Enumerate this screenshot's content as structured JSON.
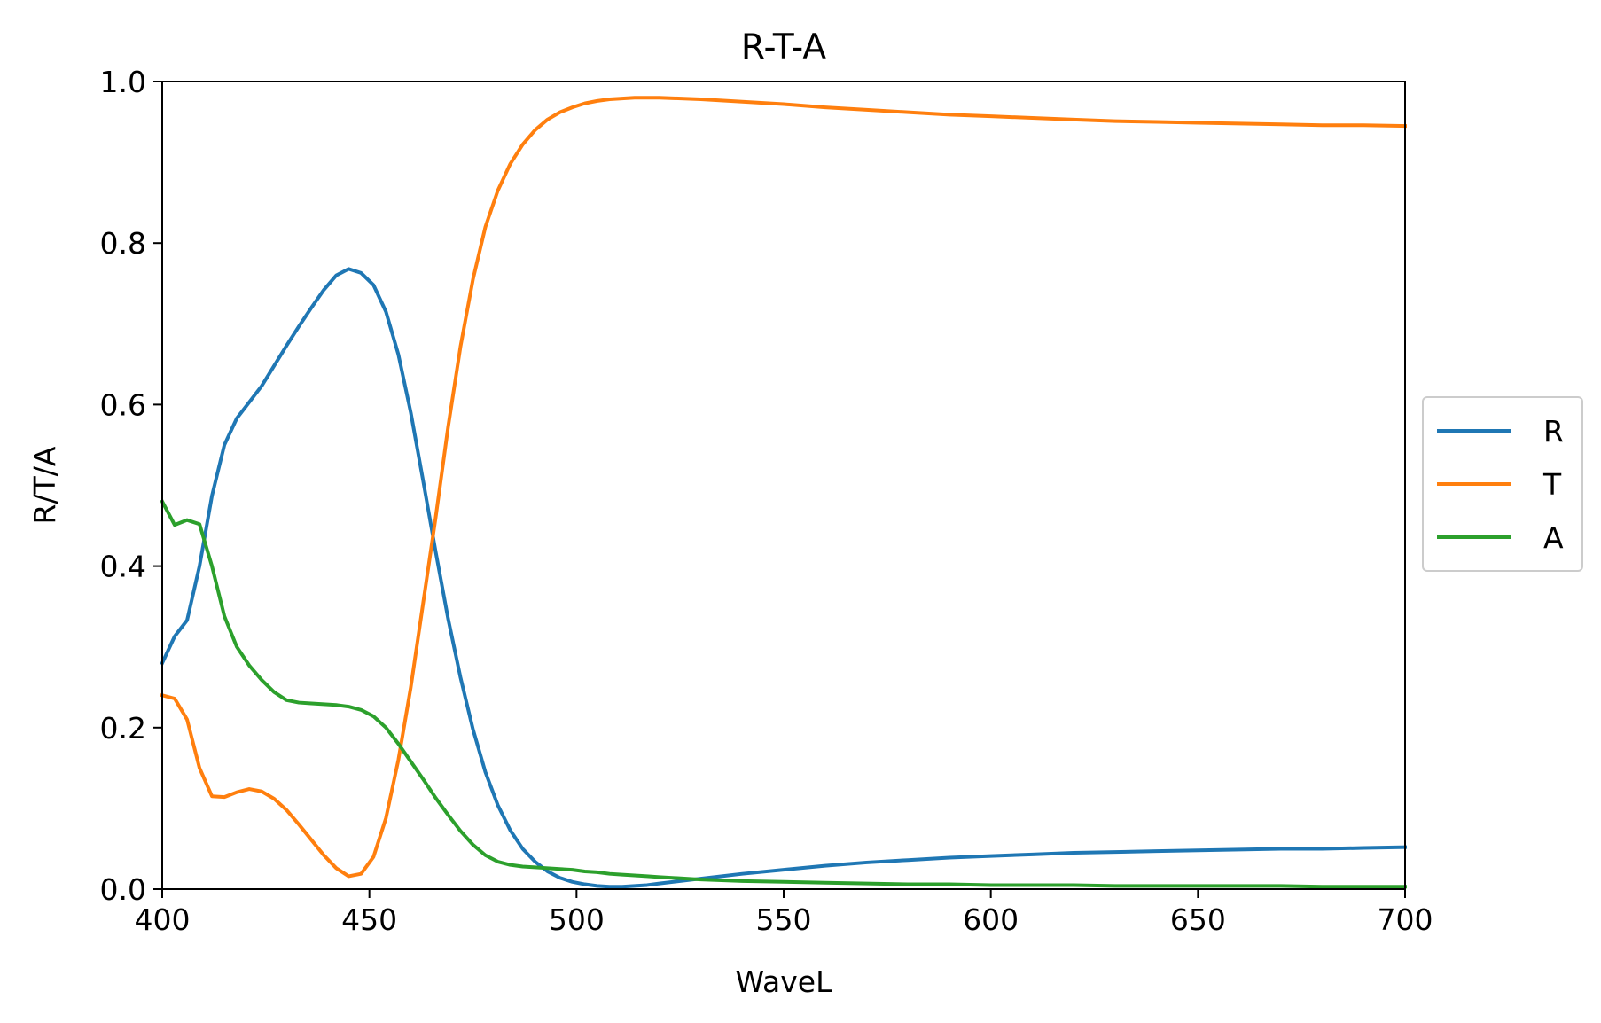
{
  "chart_data": {
    "type": "line",
    "title": "R-T-A",
    "xlabel": "WaveL",
    "ylabel": "R/T/A",
    "xlim": [
      400,
      700
    ],
    "ylim": [
      0.0,
      1.0
    ],
    "xticks": [
      400,
      450,
      500,
      550,
      600,
      650,
      700
    ],
    "xtick_labels": [
      "400",
      "450",
      "500",
      "550",
      "600",
      "650",
      "700"
    ],
    "yticks": [
      0.0,
      0.2,
      0.4,
      0.6,
      0.8,
      1.0
    ],
    "ytick_labels": [
      "0.0",
      "0.2",
      "0.4",
      "0.6",
      "0.8",
      "1.0"
    ],
    "grid": false,
    "legend_position": "center-right-outside",
    "series": [
      {
        "name": "R",
        "color": "#1f77b4",
        "x": [
          400,
          403,
          406,
          409,
          412,
          415,
          418,
          421,
          424,
          427,
          430,
          433,
          436,
          439,
          442,
          445,
          448,
          451,
          454,
          457,
          460,
          463,
          466,
          469,
          472,
          475,
          478,
          481,
          484,
          487,
          490,
          493,
          496,
          499,
          502,
          505,
          508,
          511,
          514,
          517,
          520,
          530,
          540,
          550,
          560,
          570,
          580,
          590,
          600,
          610,
          620,
          630,
          640,
          650,
          660,
          670,
          680,
          690,
          700
        ],
        "y": [
          0.28,
          0.313,
          0.333,
          0.4,
          0.487,
          0.55,
          0.583,
          0.603,
          0.623,
          0.648,
          0.673,
          0.697,
          0.72,
          0.742,
          0.76,
          0.768,
          0.763,
          0.748,
          0.715,
          0.662,
          0.59,
          0.505,
          0.418,
          0.335,
          0.262,
          0.198,
          0.145,
          0.104,
          0.073,
          0.05,
          0.034,
          0.022,
          0.014,
          0.009,
          0.006,
          0.004,
          0.003,
          0.003,
          0.004,
          0.005,
          0.007,
          0.013,
          0.019,
          0.024,
          0.029,
          0.033,
          0.036,
          0.039,
          0.041,
          0.043,
          0.045,
          0.046,
          0.047,
          0.048,
          0.049,
          0.05,
          0.05,
          0.051,
          0.052
        ]
      },
      {
        "name": "T",
        "color": "#ff7f0e",
        "x": [
          400,
          403,
          406,
          409,
          412,
          415,
          418,
          421,
          424,
          427,
          430,
          433,
          436,
          439,
          442,
          445,
          448,
          451,
          454,
          457,
          460,
          463,
          466,
          469,
          472,
          475,
          478,
          481,
          484,
          487,
          490,
          493,
          496,
          499,
          502,
          505,
          508,
          511,
          514,
          517,
          520,
          530,
          540,
          550,
          560,
          570,
          580,
          590,
          600,
          610,
          620,
          630,
          640,
          650,
          660,
          670,
          680,
          690,
          700
        ],
        "y": [
          0.24,
          0.236,
          0.21,
          0.15,
          0.115,
          0.114,
          0.12,
          0.124,
          0.121,
          0.112,
          0.098,
          0.08,
          0.061,
          0.042,
          0.026,
          0.016,
          0.019,
          0.04,
          0.088,
          0.16,
          0.25,
          0.355,
          0.46,
          0.572,
          0.672,
          0.755,
          0.82,
          0.865,
          0.898,
          0.922,
          0.94,
          0.953,
          0.962,
          0.968,
          0.973,
          0.976,
          0.978,
          0.979,
          0.98,
          0.98,
          0.98,
          0.978,
          0.975,
          0.972,
          0.968,
          0.965,
          0.962,
          0.959,
          0.957,
          0.955,
          0.953,
          0.951,
          0.95,
          0.949,
          0.948,
          0.947,
          0.946,
          0.946,
          0.945
        ]
      },
      {
        "name": "A",
        "color": "#2ca02c",
        "x": [
          400,
          403,
          406,
          409,
          412,
          415,
          418,
          421,
          424,
          427,
          430,
          433,
          436,
          439,
          442,
          445,
          448,
          451,
          454,
          457,
          460,
          463,
          466,
          469,
          472,
          475,
          478,
          481,
          484,
          487,
          490,
          493,
          496,
          499,
          502,
          505,
          508,
          511,
          514,
          517,
          520,
          530,
          540,
          550,
          560,
          570,
          580,
          590,
          600,
          610,
          620,
          630,
          640,
          650,
          660,
          670,
          680,
          690,
          700
        ],
        "y": [
          0.48,
          0.451,
          0.457,
          0.452,
          0.4,
          0.338,
          0.3,
          0.277,
          0.259,
          0.244,
          0.234,
          0.231,
          0.23,
          0.229,
          0.228,
          0.226,
          0.222,
          0.214,
          0.2,
          0.18,
          0.158,
          0.136,
          0.113,
          0.092,
          0.072,
          0.055,
          0.042,
          0.034,
          0.03,
          0.028,
          0.027,
          0.026,
          0.025,
          0.024,
          0.022,
          0.021,
          0.019,
          0.018,
          0.017,
          0.016,
          0.015,
          0.012,
          0.01,
          0.009,
          0.008,
          0.007,
          0.006,
          0.006,
          0.005,
          0.005,
          0.005,
          0.004,
          0.004,
          0.004,
          0.004,
          0.004,
          0.003,
          0.003,
          0.003
        ]
      }
    ]
  }
}
